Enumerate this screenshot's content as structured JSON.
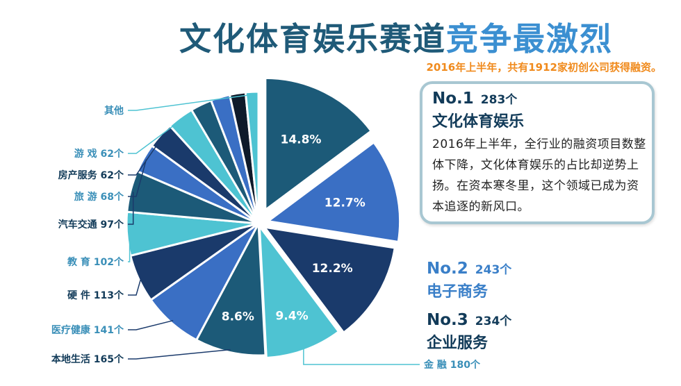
{
  "header": {
    "title_main": "文化体育娱乐赛道",
    "title_accent": "竞争最激烈",
    "subtitle": "2016年上半年，共有1912家初创公司获得融资。"
  },
  "callout": {
    "rank": "No.1",
    "count": "283个",
    "name": "文化体育娱乐",
    "desc": "2016年上半年，全行业的融资项目数整体下降，文化体育娱乐的占比却逆势上扬。在资本寒冬里，这个领域已成为资本追逐的新风口。"
  },
  "rank2": {
    "rank": "No.2",
    "count": "243个",
    "name": "电子商务"
  },
  "rank3": {
    "rank": "No.3",
    "count": "234个",
    "name": "企业服务"
  },
  "colors": {
    "dark_navy": "#1a3a6b",
    "blue": "#3a6fc4",
    "teal": "#1c5a78",
    "cyan": "#4ec3d2",
    "black": "#0e1a2a",
    "accent_orange": "#f08a1c"
  },
  "chart_data": {
    "type": "pie",
    "total": 1912,
    "slices": [
      {
        "label": "文化体育娱乐",
        "value": 283,
        "pct_label": "14.8%",
        "color": "#1c5a78"
      },
      {
        "label": "电子商务",
        "value": 243,
        "pct_label": "12.7%",
        "color": "#3a6fc4"
      },
      {
        "label": "企业服务",
        "value": 234,
        "pct_label": "12.2%",
        "color": "#1a3a6b"
      },
      {
        "label": "金 融",
        "value": 180,
        "pct_label": "9.4%",
        "color": "#4ec3d2",
        "outer_label": "金 融 180个"
      },
      {
        "label": "本地生活",
        "value": 165,
        "pct_label": "8.6%",
        "color": "#1c5a78",
        "outer_label": "本地生活 165个"
      },
      {
        "label": "医疗健康",
        "value": 141,
        "color": "#3a6fc4",
        "outer_label": "医疗健康 141个"
      },
      {
        "label": "硬 件",
        "value": 113,
        "color": "#1a3a6b",
        "outer_label": "硬 件 113个"
      },
      {
        "label": "教 育",
        "value": 102,
        "color": "#4ec3d2",
        "outer_label": "教 育 102个"
      },
      {
        "label": "汽车交通",
        "value": 97,
        "color": "#1c5a78",
        "outer_label": "汽车交通 97个"
      },
      {
        "label": "旅 游",
        "value": 68,
        "color": "#3a6fc4",
        "outer_label": "旅 游 68个"
      },
      {
        "label": "房产服务",
        "value": 62,
        "color": "#1a3a6b",
        "outer_label": "房产服务 62个"
      },
      {
        "label": "游 戏",
        "value": 62,
        "color": "#4ec3d2",
        "outer_label": "游 戏 62个"
      },
      {
        "label": "其他a",
        "value": 50,
        "color": "#1c5a78"
      },
      {
        "label": "其他b",
        "value": 45,
        "color": "#3a6fc4"
      },
      {
        "label": "其他c",
        "value": 37,
        "color": "#0e1a2a"
      },
      {
        "label": "其他d",
        "value": 30,
        "color": "#4ec3d2",
        "outer_label": "其他"
      }
    ]
  }
}
